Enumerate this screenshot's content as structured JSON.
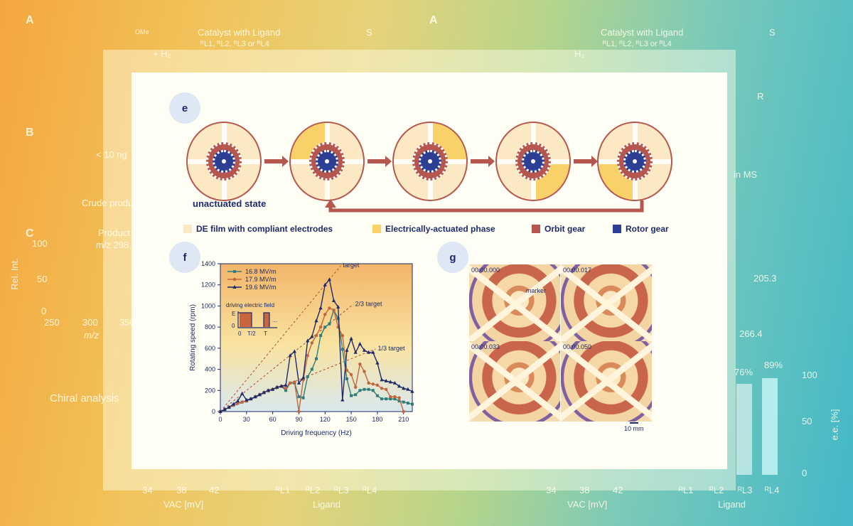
{
  "background": {
    "left": {
      "label_a": "A",
      "catalyst": "Catalyst with Ligand",
      "ligands": "ᴿL1, ᴿL2, ᴿL3 or ᴿL4",
      "s": "S",
      "h2": "+ H₂",
      "ome": "OMe",
      "label_b": "B",
      "amount": "< 10 ng",
      "crude": "Crude produ",
      "label_c": "C",
      "product": "Product",
      "mz_value": "m/z 298.",
      "rel_int": "Rel. Int.",
      "y_ticks": [
        "100",
        "50",
        "0"
      ],
      "x_ticks": [
        "250",
        "300",
        "350"
      ],
      "mz": "m/z",
      "chiral": "Chiral analysis",
      "vac_ticks": [
        "34",
        "38",
        "42"
      ],
      "vac": "VAC [mV]",
      "ligand_ticks": [
        "ᴿL1",
        "ᴿL2",
        "ᴿL3",
        "ᴿL4"
      ],
      "ligand": "Ligand"
    },
    "right": {
      "label_a": "A",
      "catalyst": "Catalyst with Ligand",
      "ligands": "ᴿL1, ᴿL2, ᴿL3 or ᴿL4",
      "s": "S",
      "h2": "H₂",
      "r": "R",
      "ms": "in MS",
      "peak1": "205.3",
      "peak2": "266.4",
      "pct1": "76%",
      "pct2": "89%",
      "ee": "e.e. [%]",
      "ee_ticks": [
        "100",
        "50",
        "0"
      ],
      "vac_ticks": [
        "34",
        "38",
        "42"
      ],
      "vac": "VAC [mV]",
      "ligand_ticks": [
        "ᴿL1",
        "ᴿL2",
        "ᴿL3",
        "ᴿL4"
      ],
      "ligand": "Ligand"
    }
  },
  "panel_e": {
    "label": "e",
    "state": "unactuated state",
    "legend": [
      {
        "label": "DE film with compliant electrodes",
        "color": "#fbe9c4"
      },
      {
        "label": "Electrically-actuated phase",
        "color": "#f8d168"
      },
      {
        "label": "Orbit gear",
        "color": "#b5574e"
      },
      {
        "label": "Rotor gear",
        "color": "#2c3f94"
      }
    ]
  },
  "panel_f": {
    "label": "f"
  },
  "panel_g": {
    "label": "g",
    "timestamps": [
      "00:00.000",
      "00:00.017",
      "00:00.033",
      "00:00.050"
    ],
    "marker": "marker",
    "scale": "10 mm"
  },
  "chart_data": {
    "type": "line",
    "xlabel": "Driving frequency (Hz)",
    "ylabel": "Rotating speed (rpm)",
    "xlim": [
      0,
      220
    ],
    "ylim": [
      0,
      1400
    ],
    "x_ticks": [
      "0",
      "30",
      "60",
      "90",
      "120",
      "150",
      "180",
      "210"
    ],
    "y_ticks": [
      "0",
      "200",
      "400",
      "600",
      "800",
      "1000",
      "1200",
      "1400"
    ],
    "legend_position": "top-left",
    "x": [
      0,
      5,
      10,
      15,
      20,
      25,
      30,
      35,
      40,
      45,
      50,
      55,
      60,
      65,
      70,
      75,
      80,
      85,
      90,
      95,
      100,
      105,
      110,
      115,
      120,
      125,
      130,
      135,
      140,
      145,
      150,
      155,
      160,
      165,
      170,
      175,
      180,
      185,
      190,
      195,
      200,
      205,
      210,
      215,
      220
    ],
    "series": [
      {
        "name": "16.8 MV/m",
        "marker": "square",
        "color": "#2f7d7a",
        "values": [
          0,
          20,
          40,
          60,
          80,
          90,
          100,
          120,
          140,
          160,
          180,
          200,
          210,
          230,
          240,
          200,
          270,
          270,
          140,
          130,
          330,
          400,
          500,
          720,
          800,
          830,
          960,
          880,
          590,
          310,
          150,
          160,
          200,
          210,
          210,
          200,
          150,
          120,
          120,
          120,
          120,
          100,
          90,
          80,
          70
        ]
      },
      {
        "name": "17.9 MV/m",
        "marker": "circle",
        "color": "#c0663e",
        "values": [
          0,
          20,
          40,
          60,
          80,
          90,
          100,
          120,
          140,
          160,
          180,
          200,
          210,
          230,
          240,
          220,
          270,
          280,
          0,
          300,
          530,
          650,
          720,
          800,
          920,
          980,
          960,
          800,
          720,
          390,
          350,
          230,
          450,
          380,
          270,
          260,
          250,
          220,
          210,
          140,
          140,
          130,
          0,
          null,
          null
        ]
      },
      {
        "name": "19.6 MV/m",
        "marker": "triangle",
        "color": "#1d2a6b",
        "values": [
          0,
          20,
          40,
          70,
          100,
          170,
          110,
          120,
          140,
          160,
          180,
          200,
          210,
          230,
          240,
          250,
          530,
          570,
          270,
          320,
          670,
          710,
          860,
          980,
          1200,
          1250,
          1050,
          990,
          110,
          580,
          690,
          560,
          640,
          580,
          560,
          560,
          460,
          300,
          290,
          280,
          270,
          240,
          220,
          210,
          190
        ]
      }
    ],
    "reference_lines": [
      {
        "label": "target",
        "slope": 10,
        "x_end": 138
      },
      {
        "label": "2/3 target",
        "slope": 6.667,
        "x_end": 152
      },
      {
        "label": "1/3 target",
        "slope": 3.333,
        "x_end": 178
      }
    ],
    "inset": {
      "title": "driving electric field",
      "y_labels": [
        "E",
        "0"
      ],
      "x_labels": [
        "0",
        "T/2",
        "T"
      ],
      "ellipsis": "..."
    }
  }
}
